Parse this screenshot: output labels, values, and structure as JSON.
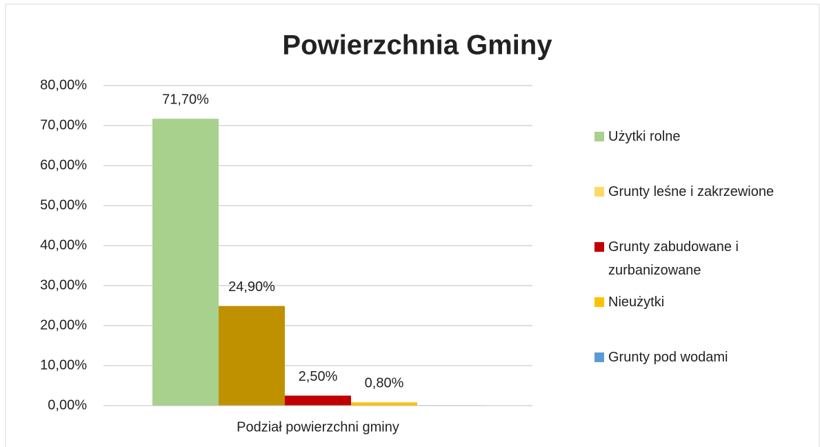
{
  "chart_data": {
    "type": "bar",
    "title": "Powierzchnia Gminy",
    "categories": [
      "Podział powierzchni gminy"
    ],
    "series": [
      {
        "name": "Użytki rolne",
        "color": "#a9d18e",
        "values": [
          71.7
        ],
        "value_labels": [
          "71,70%"
        ]
      },
      {
        "name": "Grunty leśne i zakrzewione",
        "color": "#bf9000",
        "legend_color": "#ffd966",
        "values": [
          24.9
        ],
        "value_labels": [
          "24,90%"
        ]
      },
      {
        "name": "Grunty zabudowane i zurbanizowane",
        "color": "#c00000",
        "values": [
          2.5
        ],
        "value_labels": [
          "2,50%"
        ]
      },
      {
        "name": "Nieużytki",
        "color": "#ffc000",
        "values": [
          0.8
        ],
        "value_labels": [
          "0,80%"
        ]
      },
      {
        "name": "Grunty pod wodami",
        "color": "#5b9bd5",
        "values": [
          0.1
        ]
      }
    ],
    "ylim": [
      0,
      80
    ],
    "yticks": [
      {
        "value": 0,
        "label": "0,00%"
      },
      {
        "value": 10,
        "label": "10,00%"
      },
      {
        "value": 20,
        "label": "20,00%"
      },
      {
        "value": 30,
        "label": "30,00%"
      },
      {
        "value": 40,
        "label": "40,00%"
      },
      {
        "value": 50,
        "label": "50,00%"
      },
      {
        "value": 60,
        "label": "60,00%"
      },
      {
        "value": 70,
        "label": "70,00%"
      },
      {
        "value": 80,
        "label": "80,00%"
      }
    ],
    "grid": true,
    "legend": "right"
  }
}
